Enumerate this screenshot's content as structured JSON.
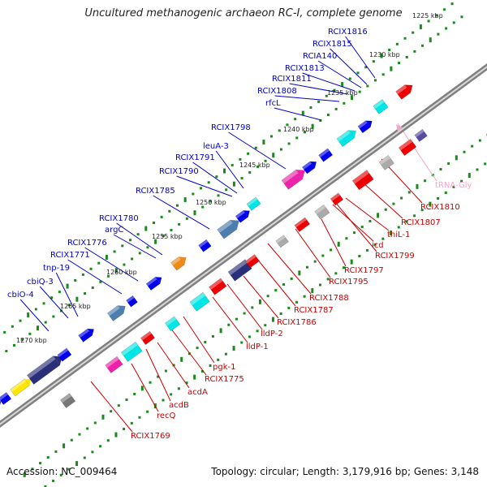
{
  "title": "Uncultured methanogenic archaeon RC-I, complete genome",
  "footer": {
    "accession_label": "Accession:",
    "accession": "NC_009464",
    "topology_label": "Topology:",
    "topology": "circular",
    "length_label": "Length:",
    "length": "3,179,916 bp",
    "genes_label": "Genes:",
    "genes": "3,148"
  },
  "colors": {
    "backbone": "#808080",
    "plus_strand_gene": "#0000ee",
    "minus_strand_gene": "#ee0000",
    "label_plus": "#0000cc",
    "label_minus": "#cc0000",
    "trna": "#f4a6c8",
    "tick_dots": "#1a8a1a"
  },
  "kbp_ticks": [
    "1225 kbp",
    "1230 kbp",
    "1235 kbp",
    "1240 kbp",
    "1245 kbp",
    "1250 kbp",
    "1255 kbp",
    "1260 kbp",
    "1265 kbp",
    "1270 kbp"
  ],
  "upper_labels": [
    "RCIX1816",
    "RCIX1815",
    "RCIA140",
    "RCIX1813",
    "RCIX1811",
    "RCIX1808",
    "rfcL",
    "RCIX1798",
    "leuA-3",
    "RCIX1791",
    "RCIX1790",
    "RCIX1785",
    "RCIX1780",
    "argC",
    "RCIX1776",
    "RCIX1771",
    "tnp-19",
    "cbiQ-3",
    "cbiO-4"
  ],
  "lower_labels": [
    "RCIX1810",
    "tRNA-Gly",
    "RCIX1807",
    "thiL-1",
    "RCIX1799",
    "icd",
    "RCIX1797",
    "RCIX1795",
    "RCIX1788",
    "RCIX1787",
    "RCIX1786",
    "lldP-2",
    "lldP-1",
    "pgk-1",
    "RCIX1775",
    "acdA",
    "acdB",
    "recQ",
    "RCIX1769"
  ]
}
